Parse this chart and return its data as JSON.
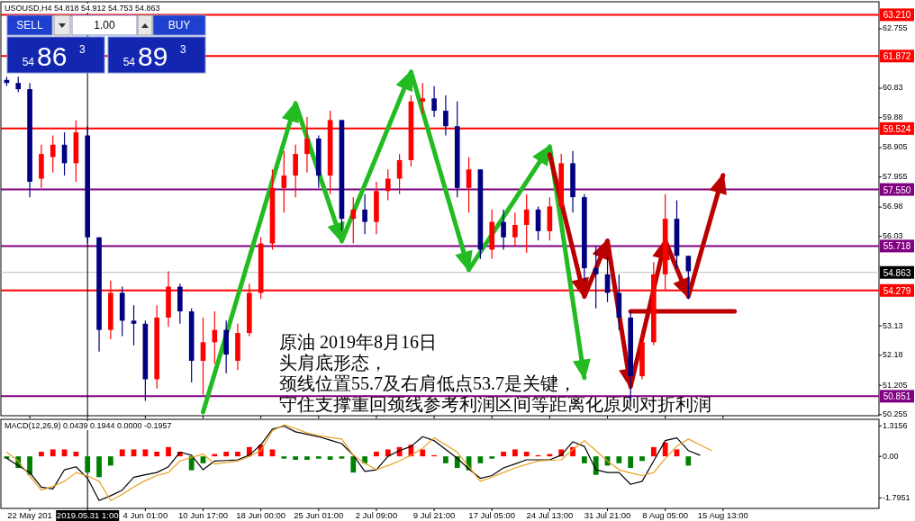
{
  "chart_data": [
    {
      "type": "candlestick",
      "title": "USOUSD,H4  54.818 54.912 54.753 54.863",
      "categories": [
        null,
        null,
        "22 May 201",
        null,
        null,
        null,
        null,
        "2019.05.31 1:00",
        null,
        null,
        null,
        null,
        "4 Jun 01:00",
        null,
        null,
        null,
        null,
        "10 Jun 17:00",
        null,
        null,
        null,
        null,
        "18 Jun 00:00",
        null,
        null,
        null,
        null,
        "25 Jun 01:00",
        null,
        null,
        null,
        null,
        "2 Jul 09:00",
        null,
        null,
        null,
        null,
        "9 Jul 21:00",
        null,
        null,
        null,
        null,
        "17 Jul 05:00",
        null,
        null,
        null,
        null,
        "24 Jul 13:00",
        null,
        null,
        null,
        null,
        "31 Jul 21:00",
        null,
        null,
        null,
        null,
        "8 Aug 05:00",
        null,
        null,
        null,
        null,
        "15 Aug 13:00",
        null,
        null,
        null,
        null,
        null,
        null,
        null,
        null,
        null,
        null,
        null,
        null,
        null
      ],
      "ohlc": [
        [
          61.1,
          61.2,
          60.9,
          61.0
        ],
        [
          61.0,
          61.2,
          60.7,
          60.8
        ],
        [
          60.8,
          61.0,
          57.3,
          57.8
        ],
        [
          57.9,
          59.0,
          57.6,
          58.7
        ],
        [
          58.6,
          59.3,
          58.1,
          59.0
        ],
        [
          59.0,
          59.4,
          58.0,
          58.4
        ],
        [
          58.4,
          59.8,
          57.8,
          59.4
        ],
        [
          59.3,
          59.6,
          55.8,
          56.0
        ],
        [
          56.0,
          56.0,
          52.3,
          53.0
        ],
        [
          53.0,
          54.6,
          52.7,
          54.2
        ],
        [
          54.2,
          54.4,
          52.8,
          53.3
        ],
        [
          53.3,
          53.8,
          52.5,
          53.2
        ],
        [
          53.2,
          53.3,
          50.7,
          51.4
        ],
        [
          51.4,
          53.8,
          51.1,
          53.4
        ],
        [
          53.4,
          54.9,
          53.1,
          54.4
        ],
        [
          54.4,
          54.5,
          53.2,
          53.6
        ],
        [
          53.6,
          53.7,
          51.3,
          52.0
        ],
        [
          52.0,
          53.4,
          50.9,
          52.6
        ],
        [
          52.6,
          53.6,
          51.9,
          53.0
        ],
        [
          53.0,
          53.3,
          51.6,
          52.2
        ],
        [
          52.0,
          53.2,
          51.7,
          52.9
        ],
        [
          52.9,
          54.5,
          52.8,
          54.2
        ],
        [
          54.2,
          56.0,
          54.0,
          55.8
        ],
        [
          55.8,
          58.2,
          55.6,
          57.6
        ],
        [
          57.6,
          58.8,
          56.8,
          58.0
        ],
        [
          58.0,
          59.0,
          57.3,
          58.7
        ],
        [
          58.7,
          59.9,
          58.1,
          59.2
        ],
        [
          59.2,
          59.3,
          57.6,
          58.0
        ],
        [
          58.0,
          60.1,
          57.4,
          59.8
        ],
        [
          59.8,
          59.8,
          56.2,
          56.6
        ],
        [
          56.6,
          57.3,
          55.8,
          56.9
        ],
        [
          56.9,
          57.4,
          56.1,
          56.5
        ],
        [
          56.5,
          57.8,
          56.1,
          57.5
        ],
        [
          57.5,
          58.2,
          57.2,
          57.9
        ],
        [
          57.9,
          58.7,
          57.4,
          58.5
        ],
        [
          58.5,
          60.6,
          58.3,
          60.4
        ],
        [
          60.4,
          61.0,
          60.0,
          60.5
        ],
        [
          60.5,
          60.9,
          59.9,
          60.1
        ],
        [
          60.1,
          60.6,
          59.3,
          59.6
        ],
        [
          59.6,
          60.4,
          57.3,
          57.6
        ],
        [
          57.6,
          58.6,
          56.8,
          58.2
        ],
        [
          58.2,
          58.2,
          55.3,
          55.6
        ],
        [
          55.6,
          56.9,
          55.3,
          56.5
        ],
        [
          56.5,
          56.9,
          55.6,
          56.0
        ],
        [
          56.0,
          56.8,
          55.7,
          56.4
        ],
        [
          56.4,
          57.4,
          55.5,
          56.9
        ],
        [
          56.9,
          57.0,
          55.9,
          56.2
        ],
        [
          56.2,
          57.3,
          55.9,
          57.0
        ],
        [
          57.0,
          58.7,
          56.9,
          58.4
        ],
        [
          58.4,
          58.8,
          56.8,
          57.3
        ],
        [
          57.3,
          57.4,
          54.6,
          55.0
        ],
        [
          55.0,
          55.7,
          53.7,
          54.8
        ],
        [
          54.8,
          55.4,
          53.9,
          54.2
        ],
        [
          54.2,
          54.8,
          53.0,
          53.4
        ],
        [
          53.4,
          53.6,
          50.7,
          51.5
        ],
        [
          51.5,
          52.9,
          51.4,
          52.6
        ],
        [
          52.6,
          55.2,
          52.5,
          54.8
        ],
        [
          54.8,
          57.4,
          54.3,
          56.6
        ],
        [
          56.6,
          57.2,
          55.0,
          55.4
        ],
        [
          55.4,
          55.4,
          54.0,
          54.9
        ],
        null,
        null,
        null,
        null,
        null,
        null,
        null,
        null,
        null,
        null,
        null,
        null,
        null,
        null,
        null,
        null
      ],
      "colors": [
        "#000080",
        "#000080",
        "#000080",
        "#ff0000",
        "#ff0000",
        "#000080",
        "#ff0000",
        "#000080",
        "#000080",
        "#ff0000",
        "#000080",
        "#000080",
        "#000080",
        "#ff0000",
        "#ff0000",
        "#000080",
        "#000080",
        "#ff0000",
        "#ff0000",
        "#000080",
        "#ff0000",
        "#ff0000",
        "#ff0000",
        "#ff0000",
        "#ff0000",
        "#ff0000",
        "#ff0000",
        "#000080",
        "#ff0000",
        "#000080",
        "#ff0000",
        "#000080",
        "#ff0000",
        "#ff0000",
        "#ff0000",
        "#ff0000",
        "#ff0000",
        "#000080",
        "#000080",
        "#000080",
        "#ff0000",
        "#000080",
        "#ff0000",
        "#000080",
        "#ff0000",
        "#ff0000",
        "#000080",
        "#ff0000",
        "#ff0000",
        "#000080",
        "#000080",
        "#000080",
        "#000080",
        "#000080",
        "#000080",
        "#ff0000",
        "#ff0000",
        "#ff0000",
        "#000080",
        "#000080",
        null,
        null,
        null,
        null,
        null,
        null,
        null,
        null,
        null,
        null,
        null,
        null,
        null,
        null,
        null,
        null
      ],
      "series": [
        {
          "type": "line",
          "color": "#22bb22",
          "values": [
            null,
            null,
            null,
            null,
            null,
            null,
            null,
            null,
            null,
            null,
            null,
            null,
            null,
            null,
            null,
            null,
            null,
            50.34,
            null,
            null,
            null,
            null,
            null,
            null,
            null,
            60.34,
            null,
            null,
            null,
            55.88,
            null,
            null,
            null,
            null,
            null,
            61.36,
            null,
            null,
            null,
            null,
            54.95,
            null,
            null,
            null,
            null,
            null,
            null,
            58.94,
            null,
            null,
            51.45,
            null,
            null,
            null,
            null,
            null,
            null,
            null,
            null,
            null,
            null,
            null,
            null,
            null,
            null,
            null,
            null,
            null,
            null,
            null,
            null,
            null,
            null,
            null,
            null,
            null
          ]
        },
        {
          "type": "line",
          "color": "#bb0000",
          "values": [
            null,
            null,
            null,
            null,
            null,
            null,
            null,
            null,
            null,
            null,
            null,
            null,
            null,
            null,
            null,
            null,
            null,
            null,
            null,
            null,
            null,
            null,
            null,
            null,
            null,
            null,
            null,
            null,
            null,
            null,
            null,
            null,
            null,
            null,
            null,
            null,
            null,
            null,
            null,
            null,
            null,
            null,
            null,
            null,
            null,
            null,
            null,
            58.68,
            null,
            null,
            54.08,
            null,
            55.89,
            null,
            51.16,
            null,
            null,
            55.89,
            null,
            54.08,
            null,
            null,
            58.01,
            null,
            null,
            null,
            null,
            null,
            null,
            null,
            null,
            null,
            null,
            null,
            null,
            null
          ]
        },
        {
          "type": "line",
          "color": "#bb0000",
          "values": [
            null,
            null,
            null,
            null,
            null,
            null,
            null,
            null,
            null,
            null,
            null,
            null,
            null,
            null,
            null,
            null,
            null,
            null,
            null,
            null,
            null,
            null,
            null,
            null,
            null,
            null,
            null,
            null,
            null,
            null,
            null,
            null,
            null,
            null,
            null,
            null,
            null,
            null,
            null,
            null,
            null,
            null,
            null,
            null,
            null,
            null,
            null,
            null,
            null,
            null,
            null,
            null,
            null,
            null,
            53.6,
            null,
            null,
            null,
            null,
            null,
            null,
            null,
            null,
            53.6,
            null,
            null,
            null,
            null,
            null,
            null,
            null,
            null,
            null,
            null,
            null,
            null
          ]
        }
      ],
      "ylim": [
        50.22,
        63.63
      ],
      "yticks": [
        62.755,
        60.83,
        59.88,
        58.905,
        57.955,
        56.98,
        56.03,
        53.13,
        52.18,
        51.205,
        50.255
      ],
      "tick_labels": "y",
      "ref_lines": [
        {
          "axis": "y",
          "value": 63.21,
          "label": "63.210",
          "color": "#ff0000"
        },
        {
          "axis": "y",
          "value": 61.872,
          "label": "61.872",
          "color": "#ff0000"
        },
        {
          "axis": "y",
          "value": 59.524,
          "label": "59.524",
          "color": "#ff0000"
        },
        {
          "axis": "y",
          "value": 57.55,
          "label": "57.550",
          "color": "#800080"
        },
        {
          "axis": "y",
          "value": 55.718,
          "label": "55.718",
          "color": "#800080"
        },
        {
          "axis": "y",
          "value": 54.863,
          "label": "54.863",
          "color": "#c0c0c0"
        },
        {
          "axis": "y",
          "value": 54.279,
          "label": "54.279",
          "color": "#ff0000"
        },
        {
          "axis": "y",
          "value": 50.851,
          "label": "50.851",
          "color": "#800080"
        },
        {
          "axis": "x",
          "value": "2019.05.31 1:00",
          "color": "#000000"
        }
      ],
      "annotations": [
        "SELL",
        "1.00",
        "BUY",
        "54",
        "86",
        "3",
        "54",
        "89",
        "3",
        "原油 2019年8月16日",
        "头肩底形态，",
        "颈线位置55.7及右肩低点53.7是关键，",
        "守住支撑重回颈线参考利润区间等距离化原则对折利润"
      ]
    },
    {
      "type": "bar",
      "title": "MACD(12,26,9) 0.0439 0.1944 0.0000 -0.1957",
      "categories": [
        null,
        null,
        "22 May 201",
        null,
        null,
        null,
        null,
        "2019.05.31 1:00",
        null,
        null,
        null,
        null,
        "4 Jun 01:00",
        null,
        null,
        null,
        null,
        "10 Jun 17:00",
        null,
        null,
        null,
        null,
        "18 Jun 00:00",
        null,
        null,
        null,
        null,
        "25 Jun 01:00",
        null,
        null,
        null,
        null,
        "2 Jul 09:00",
        null,
        null,
        null,
        null,
        "9 Jul 21:00",
        null,
        null,
        null,
        null,
        "17 Jul 05:00",
        null,
        null,
        null,
        null,
        "24 Jul 13:00",
        null,
        null,
        null,
        null,
        "31 Jul 21:00",
        null,
        null,
        null,
        null,
        "8 Aug 05:00",
        null,
        null,
        null,
        null,
        "15 Aug 13:00",
        null,
        null,
        null,
        null,
        null,
        null,
        null,
        null,
        null,
        null,
        null,
        null,
        null
      ],
      "series": [
        {
          "type": "bar",
          "values": [
            -0.1,
            -0.5,
            -0.8,
            0.2,
            0.3,
            0.3,
            0.2,
            -0.7,
            -0.9,
            -0.4,
            0.3,
            0.3,
            0.3,
            0.2,
            0.4,
            0.2,
            -0.6,
            -0.3,
            0.1,
            0.2,
            0.2,
            0.4,
            0.5,
            0.3,
            -0.1,
            -0.15,
            -0.15,
            -0.1,
            -0.15,
            -0.1,
            -0.7,
            -0.3,
            0.2,
            0.3,
            0.4,
            0.5,
            0.3,
            0.05,
            -0.3,
            -0.5,
            -0.6,
            -0.3,
            -0.1,
            0.2,
            0.3,
            0.2,
            0.05,
            0.1,
            0.3,
            0.4,
            -0.3,
            -0.8,
            -0.4,
            -0.3,
            -0.5,
            -0.2,
            0.4,
            0.6,
            0.3,
            -0.4,
            null,
            null,
            null,
            null,
            null,
            null,
            null,
            null,
            null,
            null,
            null,
            null,
            null,
            null,
            null,
            null
          ],
          "colors": [
            "#008000",
            "#008000",
            "#008000",
            "#ff0000",
            "#ff0000",
            "#ff0000",
            "#ff0000",
            "#008000",
            "#008000",
            "#008000",
            "#ff0000",
            "#ff0000",
            "#ff0000",
            "#ff0000",
            "#ff0000",
            "#ff0000",
            "#008000",
            "#008000",
            "#ff0000",
            "#ff0000",
            "#ff0000",
            "#ff0000",
            "#ff0000",
            "#ff0000",
            "#008000",
            "#008000",
            "#008000",
            "#008000",
            "#008000",
            "#008000",
            "#008000",
            "#008000",
            "#ff0000",
            "#ff0000",
            "#ff0000",
            "#ff0000",
            "#ff0000",
            "#ff0000",
            "#008000",
            "#008000",
            "#008000",
            "#008000",
            "#008000",
            "#ff0000",
            "#ff0000",
            "#ff0000",
            "#ff0000",
            "#ff0000",
            "#ff0000",
            "#ff0000",
            "#008000",
            "#008000",
            "#008000",
            "#008000",
            "#008000",
            "#008000",
            "#ff0000",
            "#ff0000",
            "#ff0000",
            "#008000",
            null,
            null,
            null,
            null,
            null,
            null,
            null,
            null,
            null,
            null,
            null,
            null,
            null,
            null,
            null,
            null
          ]
        },
        {
          "type": "line",
          "color": "#000000",
          "values": [
            -0.08,
            -0.4,
            -0.7,
            -1.33,
            -1.41,
            -0.58,
            -0.45,
            -0.95,
            -1.91,
            -1.7,
            -1.46,
            -0.9,
            -0.8,
            -0.7,
            -0.45,
            0.18,
            0.05,
            -0.58,
            -0.2,
            -0.18,
            -0.15,
            0.05,
            0.5,
            1.18,
            1.31,
            1.06,
            0.95,
            0.85,
            0.7,
            0.55,
            0.05,
            -0.65,
            -0.58,
            0.0,
            0.25,
            0.43,
            0.85,
            0.68,
            0.3,
            -0.08,
            -0.55,
            -0.95,
            -0.83,
            -0.5,
            -0.33,
            -0.15,
            -0.15,
            -0.15,
            0.05,
            0.63,
            0.43,
            -0.58,
            -0.7,
            -0.7,
            -1.21,
            -1.08,
            -0.2,
            0.68,
            0.8,
            0.25,
            0.05,
            null,
            null,
            null,
            null,
            null,
            null,
            null,
            null,
            null,
            null,
            null,
            null,
            null,
            null,
            null
          ]
        },
        {
          "type": "line",
          "color": "#e8a020",
          "values": [
            0.18,
            -0.2,
            -0.85,
            -1.46,
            -1.3,
            -1.08,
            -0.7,
            -0.85,
            -1.08,
            -1.91,
            -1.65,
            -1.33,
            -1.05,
            -0.83,
            -0.7,
            -0.2,
            -0.05,
            0.1,
            -0.33,
            -0.27,
            -0.2,
            0.0,
            0.25,
            1.11,
            1.36,
            1.2,
            1.01,
            0.9,
            0.82,
            0.75,
            0.05,
            -0.3,
            -0.58,
            -0.4,
            -0.2,
            0.05,
            0.35,
            0.8,
            0.5,
            0.18,
            -0.45,
            -1.08,
            -0.9,
            -0.7,
            -0.5,
            -0.35,
            -0.2,
            -0.17,
            -0.15,
            0.3,
            0.68,
            0.25,
            -0.2,
            -0.58,
            -0.72,
            -0.83,
            -0.7,
            -0.1,
            0.43,
            0.75,
            0.5,
            0.25,
            null,
            null,
            null,
            null,
            null,
            null,
            null,
            null,
            null,
            null,
            null,
            null,
            null,
            null
          ]
        }
      ],
      "ylim": [
        -2.25,
        1.6
      ],
      "yticks": [
        1.3156,
        {
          "value": 0,
          "label": "0.00"
        },
        -1.7951
      ],
      "ref_lines": [
        {
          "axis": "x",
          "value": "2019.05.31 1:00",
          "color": "#000000"
        }
      ]
    }
  ]
}
